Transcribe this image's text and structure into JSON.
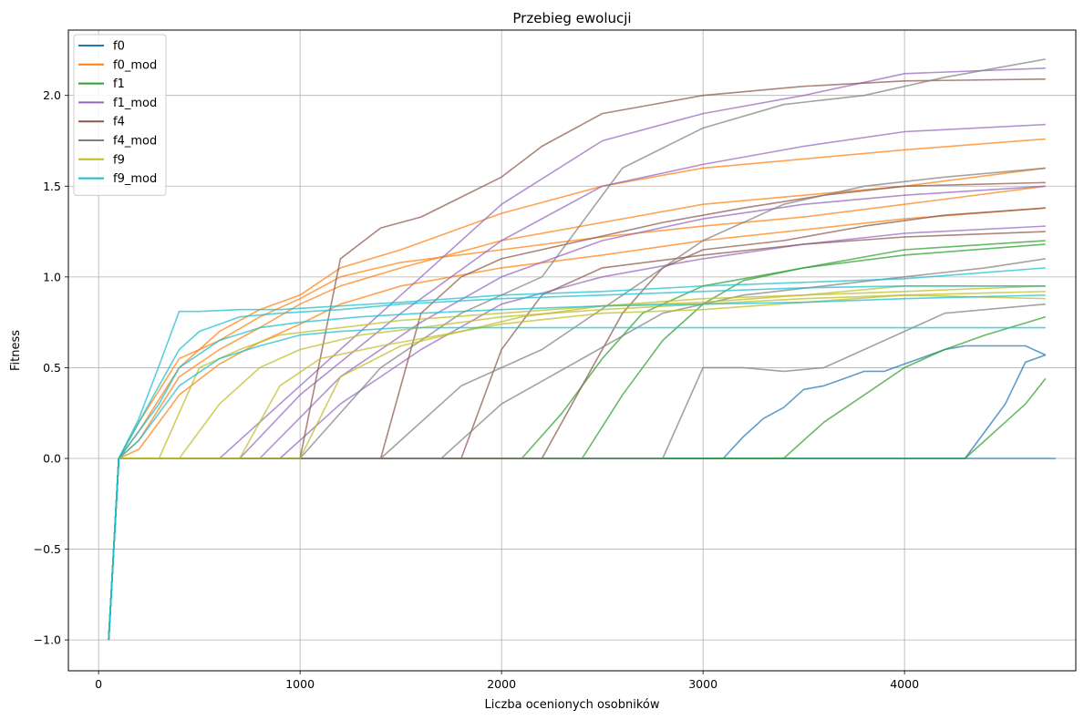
{
  "chart_data": {
    "type": "line",
    "title": "Przebieg ewolucji",
    "xlabel": "Liczba ocenionych osobników",
    "ylabel": "Fitness",
    "xlim": [
      -150,
      4850
    ],
    "ylim": [
      -1.17,
      2.36
    ],
    "xticks": [
      0,
      1000,
      2000,
      3000,
      4000
    ],
    "xtick_labels": [
      "0",
      "1000",
      "2000",
      "3000",
      "4000"
    ],
    "yticks": [
      -1.0,
      -0.5,
      0.0,
      0.5,
      1.0,
      1.5,
      2.0
    ],
    "ytick_labels": [
      "−1.0",
      "−0.5",
      "0.0",
      "0.5",
      "1.0",
      "1.5",
      "2.0"
    ],
    "grid": true,
    "legend_position": "top-left",
    "series": [
      {
        "name": "f0",
        "color": "#1f77b4",
        "lines": [
          {
            "x": [
              50,
              100,
              3100,
              3200,
              3300,
              3400,
              3500,
              3600,
              3700,
              3800,
              3900,
              4000,
              4100,
              4200,
              4300,
              4400,
              4500,
              4600,
              4700
            ],
            "y": [
              -1.0,
              0.0,
              0.0,
              0.12,
              0.22,
              0.28,
              0.38,
              0.4,
              0.44,
              0.48,
              0.48,
              0.52,
              0.56,
              0.6,
              0.62,
              0.62,
              0.62,
              0.62,
              0.57
            ]
          },
          {
            "x": [
              50,
              100,
              4300,
              4400,
              4500,
              4600,
              4700
            ],
            "y": [
              -1.0,
              0.0,
              0.0,
              0.15,
              0.3,
              0.53,
              0.57
            ]
          },
          {
            "x": [
              50,
              100,
              4750
            ],
            "y": [
              -1.0,
              0.0,
              0.0
            ]
          }
        ]
      },
      {
        "name": "f0_mod",
        "color": "#ff7f0e",
        "lines": [
          {
            "x": [
              50,
              100,
              200,
              400,
              600,
              800,
              1000,
              1200,
              1500,
              2000,
              2500,
              3000,
              3500,
              4000,
              4700
            ],
            "y": [
              -1.0,
              0.0,
              0.15,
              0.5,
              0.7,
              0.82,
              0.9,
              1.05,
              1.15,
              1.35,
              1.5,
              1.6,
              1.65,
              1.7,
              1.76
            ]
          },
          {
            "x": [
              50,
              100,
              200,
              400,
              600,
              800,
              1000,
              1200,
              1500,
              2000,
              2500,
              3000,
              3500,
              4000,
              4700
            ],
            "y": [
              -1.0,
              0.0,
              0.1,
              0.45,
              0.6,
              0.72,
              0.85,
              0.95,
              1.05,
              1.2,
              1.3,
              1.4,
              1.45,
              1.5,
              1.6
            ]
          },
          {
            "x": [
              50,
              100,
              200,
              400,
              600,
              800,
              1000,
              1200,
              1500,
              2000,
              2500,
              3000,
              3500,
              4000,
              4700
            ],
            "y": [
              -1.0,
              0.0,
              0.05,
              0.35,
              0.52,
              0.64,
              0.74,
              0.85,
              0.95,
              1.05,
              1.12,
              1.2,
              1.26,
              1.32,
              1.38
            ]
          },
          {
            "x": [
              50,
              100,
              200,
              400,
              600,
              800,
              1000,
              1200,
              1500,
              2000,
              2500,
              3000,
              3500,
              4000,
              4700
            ],
            "y": [
              -1.0,
              0.0,
              0.2,
              0.55,
              0.65,
              0.78,
              0.88,
              1.0,
              1.08,
              1.15,
              1.22,
              1.28,
              1.33,
              1.4,
              1.5
            ]
          }
        ]
      },
      {
        "name": "f1",
        "color": "#2ca02c",
        "lines": [
          {
            "x": [
              50,
              100,
              2400,
              2600,
              2800,
              3000,
              3200,
              3500,
              4000,
              4700
            ],
            "y": [
              -1.0,
              0.0,
              0.0,
              0.35,
              0.65,
              0.85,
              0.98,
              1.05,
              1.15,
              1.2
            ]
          },
          {
            "x": [
              50,
              100,
              3400,
              3600,
              3800,
              4000,
              4200,
              4400,
              4700
            ],
            "y": [
              -1.0,
              0.0,
              0.0,
              0.2,
              0.35,
              0.5,
              0.6,
              0.68,
              0.78
            ]
          },
          {
            "x": [
              50,
              100,
              4300,
              4400,
              4500,
              4600,
              4700
            ],
            "y": [
              -1.0,
              0.0,
              0.0,
              0.1,
              0.2,
              0.3,
              0.44
            ]
          },
          {
            "x": [
              50,
              100,
              2100,
              2300,
              2500,
              2700,
              3000,
              3500,
              4000,
              4700
            ],
            "y": [
              -1.0,
              0.0,
              0.0,
              0.25,
              0.55,
              0.8,
              0.95,
              1.05,
              1.12,
              1.18
            ]
          }
        ]
      },
      {
        "name": "f1_mod",
        "color": "#9467bd",
        "lines": [
          {
            "x": [
              50,
              100,
              600,
              1000,
              1500,
              2000,
              2500,
              3000,
              3500,
              4000,
              4700
            ],
            "y": [
              -1.0,
              0.0,
              0.0,
              0.4,
              0.9,
              1.4,
              1.75,
              1.9,
              2.0,
              2.12,
              2.15
            ]
          },
          {
            "x": [
              50,
              100,
              700,
              1000,
              1500,
              2000,
              2500,
              3000,
              3500,
              4000,
              4700
            ],
            "y": [
              -1.0,
              0.0,
              0.0,
              0.35,
              0.8,
              1.2,
              1.5,
              1.62,
              1.72,
              1.8,
              1.84
            ]
          },
          {
            "x": [
              50,
              100,
              800,
              1200,
              1600,
              2000,
              2500,
              3000,
              3500,
              4000,
              4700
            ],
            "y": [
              -1.0,
              0.0,
              0.0,
              0.45,
              0.75,
              1.0,
              1.2,
              1.32,
              1.4,
              1.45,
              1.5
            ]
          },
          {
            "x": [
              50,
              100,
              900,
              1200,
              1600,
              2000,
              2500,
              3000,
              3500,
              4000,
              4700
            ],
            "y": [
              -1.0,
              0.0,
              0.0,
              0.3,
              0.6,
              0.85,
              1.0,
              1.1,
              1.18,
              1.24,
              1.28
            ]
          }
        ]
      },
      {
        "name": "f4",
        "color": "#8c564b",
        "lines": [
          {
            "x": [
              50,
              100,
              1000,
              1200,
              1400,
              1600,
              2000,
              2200,
              2500,
              3000,
              3500,
              4000,
              4700
            ],
            "y": [
              -1.0,
              0.0,
              0.0,
              1.1,
              1.27,
              1.33,
              1.55,
              1.72,
              1.9,
              2.0,
              2.05,
              2.08,
              2.09
            ]
          },
          {
            "x": [
              50,
              100,
              1400,
              1600,
              1800,
              2000,
              2400,
              2800,
              3200,
              3600,
              4000,
              4700
            ],
            "y": [
              -1.0,
              0.0,
              0.0,
              0.8,
              1.0,
              1.1,
              1.2,
              1.3,
              1.38,
              1.45,
              1.5,
              1.52
            ]
          },
          {
            "x": [
              50,
              100,
              2200,
              2400,
              2600,
              2800,
              3000,
              3400,
              3800,
              4200,
              4700
            ],
            "y": [
              -1.0,
              0.0,
              0.0,
              0.4,
              0.8,
              1.05,
              1.15,
              1.2,
              1.28,
              1.34,
              1.38
            ]
          },
          {
            "x": [
              50,
              100,
              1800,
              2000,
              2200,
              2500,
              3000,
              3500,
              4000,
              4700
            ],
            "y": [
              -1.0,
              0.0,
              0.0,
              0.6,
              0.9,
              1.05,
              1.12,
              1.18,
              1.22,
              1.25
            ]
          }
        ]
      },
      {
        "name": "f4_mod",
        "color": "#7f7f7f",
        "lines": [
          {
            "x": [
              50,
              100,
              1000,
              1400,
              1800,
              2200,
              2600,
              3000,
              3400,
              3800,
              4200,
              4700
            ],
            "y": [
              -1.0,
              0.0,
              0.0,
              0.5,
              0.8,
              1.0,
              1.6,
              1.82,
              1.95,
              2.0,
              2.1,
              2.2
            ]
          },
          {
            "x": [
              50,
              100,
              1400,
              1800,
              2200,
              2600,
              3000,
              3400,
              3800,
              4200,
              4700
            ],
            "y": [
              -1.0,
              0.0,
              0.0,
              0.4,
              0.6,
              0.9,
              1.2,
              1.4,
              1.5,
              1.55,
              1.6
            ]
          },
          {
            "x": [
              50,
              100,
              1700,
              2000,
              2400,
              2800,
              3200,
              3600,
              4000,
              4400,
              4700
            ],
            "y": [
              -1.0,
              0.0,
              0.0,
              0.3,
              0.55,
              0.8,
              0.9,
              0.95,
              1.0,
              1.05,
              1.1
            ]
          },
          {
            "x": [
              50,
              100,
              2800,
              3000,
              3200,
              3400,
              3600,
              3800,
              4000,
              4200,
              4700
            ],
            "y": [
              -1.0,
              0.0,
              0.0,
              0.5,
              0.5,
              0.48,
              0.5,
              0.6,
              0.7,
              0.8,
              0.85
            ]
          }
        ]
      },
      {
        "name": "f9",
        "color": "#bcbd22",
        "lines": [
          {
            "x": [
              50,
              100,
              300,
              500,
              700,
              900,
              1200,
              1500,
              2000,
              2500,
              3000,
              3500,
              4000,
              4700
            ],
            "y": [
              -1.0,
              0.0,
              0.0,
              0.5,
              0.6,
              0.68,
              0.72,
              0.76,
              0.8,
              0.84,
              0.86,
              0.9,
              0.95,
              0.95
            ]
          },
          {
            "x": [
              50,
              100,
              400,
              600,
              800,
              1000,
              1300,
              1600,
              2000,
              2500,
              3000,
              3500,
              4000,
              4700
            ],
            "y": [
              -1.0,
              0.0,
              0.0,
              0.3,
              0.5,
              0.6,
              0.68,
              0.72,
              0.78,
              0.82,
              0.85,
              0.88,
              0.9,
              0.92
            ]
          },
          {
            "x": [
              50,
              100,
              700,
              900,
              1100,
              1400,
              1700,
              2000,
              2500,
              3000,
              3500,
              4000,
              4700
            ],
            "y": [
              -1.0,
              0.0,
              0.0,
              0.4,
              0.55,
              0.62,
              0.68,
              0.74,
              0.8,
              0.82,
              0.86,
              0.9,
              0.88
            ]
          },
          {
            "x": [
              50,
              100,
              1000,
              1200,
              1500,
              1800,
              2100,
              2500,
              3000,
              3500,
              4000,
              4700
            ],
            "y": [
              -1.0,
              0.0,
              0.0,
              0.45,
              0.62,
              0.7,
              0.78,
              0.84,
              0.88,
              0.9,
              0.92,
              0.95
            ]
          }
        ]
      },
      {
        "name": "f9_mod",
        "color": "#17becf",
        "lines": [
          {
            "x": [
              50,
              100,
              200,
              300,
              400,
              500,
              700,
              900,
              1200,
              1500,
              2000,
              2500,
              3000,
              3500,
              4000,
              4700
            ],
            "y": [
              -1.0,
              0.0,
              0.22,
              0.51,
              0.81,
              0.81,
              0.82,
              0.82,
              0.84,
              0.86,
              0.9,
              0.92,
              0.95,
              0.97,
              0.99,
              1.05
            ]
          },
          {
            "x": [
              50,
              100,
              200,
              300,
              400,
              500,
              700,
              900,
              1200,
              1500,
              2000,
              2500,
              3000,
              3500,
              4000,
              4700
            ],
            "y": [
              -1.0,
              0.0,
              0.2,
              0.4,
              0.6,
              0.7,
              0.78,
              0.8,
              0.82,
              0.85,
              0.88,
              0.9,
              0.92,
              0.94,
              0.95,
              0.95
            ]
          },
          {
            "x": [
              50,
              100,
              200,
              300,
              400,
              600,
              800,
              1000,
              1300,
              1600,
              2000,
              2500,
              3000,
              3500,
              4000,
              4700
            ],
            "y": [
              -1.0,
              0.0,
              0.15,
              0.3,
              0.5,
              0.65,
              0.72,
              0.75,
              0.78,
              0.8,
              0.82,
              0.84,
              0.85,
              0.86,
              0.88,
              0.9
            ]
          },
          {
            "x": [
              50,
              100,
              200,
              400,
              600,
              800,
              1000,
              1200,
              1500,
              2000,
              2500,
              3000,
              3500,
              4000,
              4700
            ],
            "y": [
              -1.0,
              0.0,
              0.1,
              0.4,
              0.55,
              0.62,
              0.68,
              0.7,
              0.72,
              0.72,
              0.72,
              0.72,
              0.72,
              0.72,
              0.72
            ]
          }
        ]
      }
    ]
  }
}
